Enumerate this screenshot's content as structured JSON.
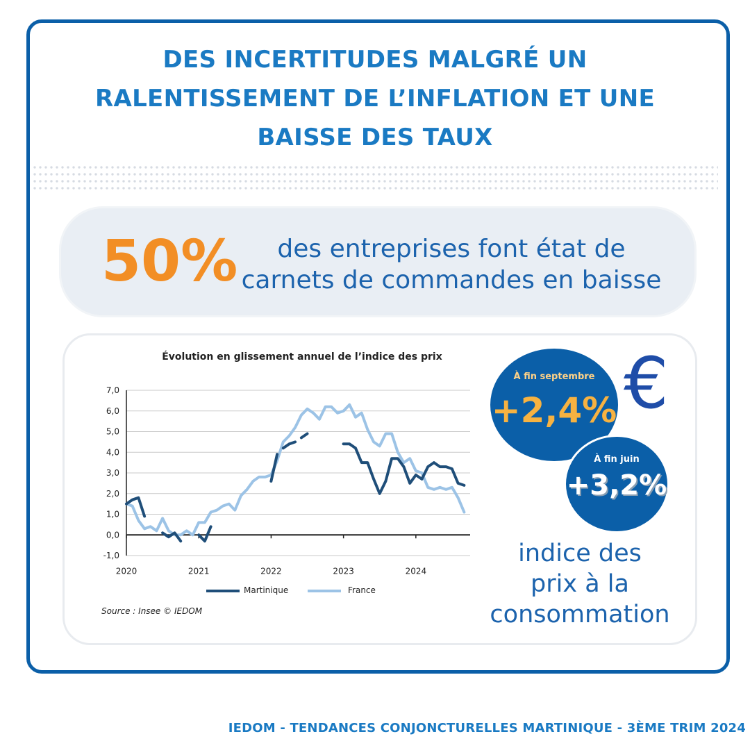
{
  "header": {
    "title_lines": [
      "DES INCERTITUDES MALGRÉ UN",
      "RALENTISSEMENT DE L’INFLATION ET UNE",
      "BAISSE DES TAUX"
    ]
  },
  "stat": {
    "value": "50%",
    "text_lines": [
      "des entreprises font état de",
      "carnets de commandes en baisse"
    ]
  },
  "chart_panel": {
    "title": "Évolution en glissement annuel de l’indice des prix",
    "source": "Source : Insee © IEDOM"
  },
  "chart_data": {
    "type": "line",
    "title": "Évolution en glissement annuel de l’indice des prix",
    "xlabel": "",
    "ylabel": "",
    "ylim": [
      -1.0,
      7.0
    ],
    "yticks": [
      "7,0",
      "6,0",
      "5,0",
      "4,0",
      "3,0",
      "2,0",
      "1,0",
      "0,0",
      "-1,0"
    ],
    "xticks": [
      "2020",
      "2021",
      "2022",
      "2023",
      "2024"
    ],
    "grid": true,
    "legend_position": "bottom",
    "series": [
      {
        "name": "Martinique",
        "color": "#1f4e79",
        "points": [
          [
            2020.0,
            1.5
          ],
          [
            2020.083,
            1.7
          ],
          [
            2020.167,
            1.8
          ],
          [
            2020.25,
            0.9
          ],
          null,
          [
            2020.5,
            0.1
          ],
          [
            2020.583,
            -0.1
          ],
          [
            2020.667,
            0.1
          ],
          [
            2020.75,
            -0.3
          ],
          null,
          [
            2021.0,
            0.0
          ],
          [
            2021.083,
            -0.3
          ],
          [
            2021.167,
            0.4
          ],
          null,
          [
            2022.0,
            2.6
          ],
          [
            2022.083,
            3.9
          ],
          null,
          [
            2022.167,
            4.2
          ],
          [
            2022.25,
            4.4
          ],
          [
            2022.333,
            4.5
          ],
          null,
          [
            2022.417,
            4.7
          ],
          [
            2022.5,
            4.9
          ],
          null,
          [
            2023.0,
            4.4
          ],
          [
            2023.083,
            4.4
          ],
          [
            2023.167,
            4.2
          ],
          [
            2023.25,
            3.5
          ],
          [
            2023.333,
            3.5
          ],
          [
            2023.417,
            2.7
          ],
          [
            2023.5,
            2.0
          ],
          [
            2023.583,
            2.6
          ],
          [
            2023.667,
            3.7
          ],
          [
            2023.75,
            3.7
          ],
          [
            2023.833,
            3.3
          ],
          [
            2023.917,
            2.5
          ],
          [
            2024.0,
            2.9
          ],
          [
            2024.083,
            2.7
          ],
          [
            2024.167,
            3.3
          ],
          [
            2024.25,
            3.5
          ],
          [
            2024.333,
            3.3
          ],
          [
            2024.417,
            3.3
          ],
          [
            2024.5,
            3.2
          ],
          [
            2024.583,
            2.5
          ],
          [
            2024.667,
            2.4
          ]
        ]
      },
      {
        "name": "France",
        "color": "#9cc3e6",
        "points": [
          [
            2020.0,
            1.5
          ],
          [
            2020.083,
            1.4
          ],
          [
            2020.167,
            0.7
          ],
          [
            2020.25,
            0.3
          ],
          [
            2020.333,
            0.4
          ],
          [
            2020.417,
            0.2
          ],
          [
            2020.5,
            0.8
          ],
          [
            2020.583,
            0.2
          ],
          [
            2020.667,
            0.0
          ],
          [
            2020.75,
            0.0
          ],
          [
            2020.833,
            0.2
          ],
          [
            2020.917,
            0.0
          ],
          [
            2021.0,
            0.6
          ],
          [
            2021.083,
            0.6
          ],
          [
            2021.167,
            1.1
          ],
          [
            2021.25,
            1.2
          ],
          [
            2021.333,
            1.4
          ],
          [
            2021.417,
            1.5
          ],
          [
            2021.5,
            1.2
          ],
          [
            2021.583,
            1.9
          ],
          [
            2021.667,
            2.2
          ],
          [
            2021.75,
            2.6
          ],
          [
            2021.833,
            2.8
          ],
          [
            2021.917,
            2.8
          ],
          [
            2022.0,
            2.9
          ],
          [
            2022.083,
            3.6
          ],
          [
            2022.167,
            4.5
          ],
          [
            2022.25,
            4.8
          ],
          [
            2022.333,
            5.2
          ],
          [
            2022.417,
            5.8
          ],
          [
            2022.5,
            6.1
          ],
          [
            2022.583,
            5.9
          ],
          [
            2022.667,
            5.6
          ],
          [
            2022.75,
            6.2
          ],
          [
            2022.833,
            6.2
          ],
          [
            2022.917,
            5.9
          ],
          [
            2023.0,
            6.0
          ],
          [
            2023.083,
            6.3
          ],
          [
            2023.167,
            5.7
          ],
          [
            2023.25,
            5.9
          ],
          [
            2023.333,
            5.1
          ],
          [
            2023.417,
            4.5
          ],
          [
            2023.5,
            4.3
          ],
          [
            2023.583,
            4.9
          ],
          [
            2023.667,
            4.9
          ],
          [
            2023.75,
            4.0
          ],
          [
            2023.833,
            3.5
          ],
          [
            2023.917,
            3.7
          ],
          [
            2024.0,
            3.1
          ],
          [
            2024.083,
            3.0
          ],
          [
            2024.167,
            2.3
          ],
          [
            2024.25,
            2.2
          ],
          [
            2024.333,
            2.3
          ],
          [
            2024.417,
            2.2
          ],
          [
            2024.5,
            2.3
          ],
          [
            2024.583,
            1.8
          ],
          [
            2024.667,
            1.1
          ]
        ]
      }
    ]
  },
  "legend": {
    "martinique": "Martinique",
    "france": "France"
  },
  "bubbles": {
    "september": {
      "caption": "À fin septembre",
      "value": "+2,4%"
    },
    "june": {
      "caption": "À fin juin",
      "value": "+3,2%"
    }
  },
  "euro_symbol": "€",
  "cpi_lines": [
    "indice des",
    "prix à la",
    "consommation"
  ],
  "footer": "IEDOM - TENDANCES CONJONCTURELLES MARTINIQUE - 3ÈME TRIM 2024",
  "colors": {
    "brand_blue": "#0b5fa8",
    "title_blue": "#1a7ac3",
    "orange": "#f28e25",
    "martinique": "#1f4e79",
    "france": "#9cc3e6"
  }
}
